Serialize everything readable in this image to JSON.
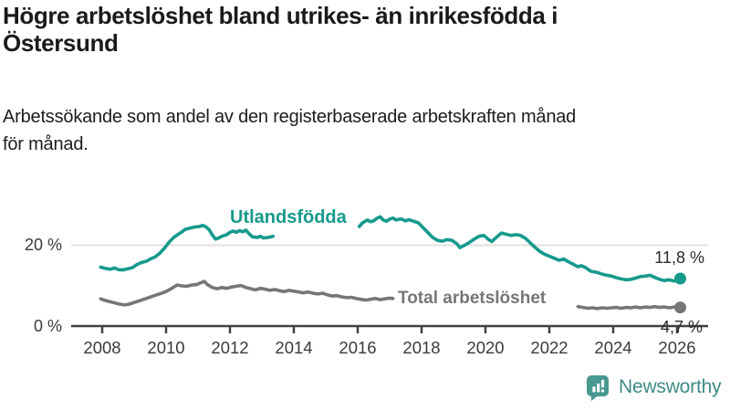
{
  "header": {
    "title": "Högre arbetslöshet bland utrikes- än inrikesfödda i Östersund",
    "title_lines": [
      "Högre arbetslöshet bland utrikes- än inrikesfödda i",
      "Östersund"
    ],
    "subtitle": "Arbetssökande som andel av den registerbaserade arbetskraften månad för månad.",
    "subtitle_lines": [
      "Arbetssökande som andel av den registerbaserade arbetskraften månad",
      "för månad."
    ]
  },
  "chart_data": {
    "type": "line",
    "unit": "%",
    "xlim": [
      2007.9,
      2026.3
    ],
    "ylim": [
      0,
      33
    ],
    "x_ticks": [
      "2008",
      "2010",
      "2012",
      "2014",
      "2016",
      "2018",
      "2020",
      "2022",
      "2024",
      "2026"
    ],
    "y_ticks": [
      {
        "value": 0,
        "label": "0 %"
      },
      {
        "value": 20,
        "label": "20 %"
      }
    ],
    "gridline_at": 20,
    "legend_position": "inline-labels-on-lines",
    "colors": {
      "axis": "#404040",
      "grid": "#e0e0e0"
    },
    "series": [
      {
        "name": "Utlandsfödda",
        "color": "#169a8c",
        "end_label": "11,8 %",
        "end_value": 11.8,
        "segments": [
          [
            [
              2007.95,
              14.6
            ],
            [
              2008.1,
              14.3
            ],
            [
              2008.25,
              14.1
            ],
            [
              2008.4,
              14.4
            ],
            [
              2008.5,
              14.0
            ],
            [
              2008.65,
              13.9
            ],
            [
              2008.8,
              14.2
            ],
            [
              2008.95,
              14.5
            ],
            [
              2009.1,
              15.3
            ],
            [
              2009.25,
              15.8
            ],
            [
              2009.4,
              16.1
            ],
            [
              2009.5,
              16.6
            ],
            [
              2009.65,
              17.1
            ],
            [
              2009.8,
              18.0
            ],
            [
              2009.95,
              19.3
            ],
            [
              2010.1,
              20.8
            ],
            [
              2010.25,
              22.0
            ],
            [
              2010.4,
              22.8
            ],
            [
              2010.5,
              23.3
            ],
            [
              2010.6,
              23.9
            ],
            [
              2010.75,
              24.2
            ],
            [
              2010.9,
              24.5
            ],
            [
              2011.05,
              24.6
            ],
            [
              2011.15,
              24.9
            ],
            [
              2011.25,
              24.5
            ],
            [
              2011.35,
              23.8
            ],
            [
              2011.45,
              22.5
            ],
            [
              2011.55,
              21.5
            ],
            [
              2011.65,
              21.8
            ],
            [
              2011.75,
              22.2
            ],
            [
              2011.9,
              22.6
            ],
            [
              2012.0,
              23.2
            ],
            [
              2012.1,
              23.5
            ],
            [
              2012.2,
              23.2
            ],
            [
              2012.3,
              23.6
            ],
            [
              2012.4,
              23.3
            ],
            [
              2012.5,
              23.7
            ],
            [
              2012.6,
              22.8
            ],
            [
              2012.7,
              22.1
            ],
            [
              2012.85,
              21.9
            ],
            [
              2012.95,
              22.2
            ],
            [
              2013.05,
              21.8
            ],
            [
              2013.2,
              21.9
            ],
            [
              2013.35,
              22.2
            ]
          ],
          [
            [
              2016.05,
              24.6
            ],
            [
              2016.15,
              25.5
            ],
            [
              2016.3,
              26.2
            ],
            [
              2016.4,
              25.8
            ],
            [
              2016.5,
              26.0
            ],
            [
              2016.6,
              26.6
            ],
            [
              2016.7,
              27.0
            ],
            [
              2016.8,
              26.2
            ],
            [
              2016.9,
              25.9
            ],
            [
              2017.0,
              26.4
            ],
            [
              2017.1,
              26.7
            ],
            [
              2017.2,
              26.2
            ],
            [
              2017.35,
              26.5
            ],
            [
              2017.5,
              26.0
            ],
            [
              2017.6,
              26.3
            ],
            [
              2017.75,
              25.9
            ],
            [
              2017.9,
              25.5
            ],
            [
              2018.05,
              24.3
            ],
            [
              2018.2,
              23.1
            ],
            [
              2018.35,
              21.9
            ],
            [
              2018.5,
              21.2
            ],
            [
              2018.65,
              21.0
            ],
            [
              2018.8,
              21.4
            ],
            [
              2018.95,
              21.2
            ],
            [
              2019.1,
              20.4
            ],
            [
              2019.2,
              19.4
            ],
            [
              2019.35,
              20.0
            ],
            [
              2019.5,
              20.7
            ],
            [
              2019.65,
              21.5
            ],
            [
              2019.8,
              22.2
            ],
            [
              2019.95,
              22.4
            ],
            [
              2020.1,
              21.4
            ],
            [
              2020.2,
              20.9
            ],
            [
              2020.35,
              22.0
            ],
            [
              2020.5,
              23.0
            ],
            [
              2020.65,
              22.7
            ],
            [
              2020.8,
              22.4
            ],
            [
              2020.95,
              22.6
            ],
            [
              2021.1,
              22.4
            ],
            [
              2021.25,
              21.7
            ],
            [
              2021.4,
              20.6
            ],
            [
              2021.55,
              19.5
            ],
            [
              2021.7,
              18.5
            ],
            [
              2021.85,
              17.8
            ],
            [
              2022.0,
              17.3
            ],
            [
              2022.15,
              16.8
            ],
            [
              2022.3,
              16.3
            ],
            [
              2022.45,
              16.6
            ],
            [
              2022.6,
              15.9
            ],
            [
              2022.75,
              15.3
            ],
            [
              2022.9,
              14.7
            ],
            [
              2023.0,
              15.0
            ],
            [
              2023.15,
              14.4
            ],
            [
              2023.3,
              13.6
            ],
            [
              2023.5,
              13.3
            ],
            [
              2023.65,
              12.9
            ],
            [
              2023.8,
              12.6
            ],
            [
              2023.95,
              12.4
            ],
            [
              2024.1,
              12.0
            ],
            [
              2024.25,
              11.7
            ],
            [
              2024.4,
              11.5
            ],
            [
              2024.55,
              11.6
            ],
            [
              2024.7,
              11.9
            ],
            [
              2024.85,
              12.3
            ],
            [
              2025.0,
              12.4
            ],
            [
              2025.15,
              12.6
            ],
            [
              2025.3,
              12.1
            ],
            [
              2025.45,
              11.6
            ],
            [
              2025.6,
              11.3
            ],
            [
              2025.75,
              11.5
            ],
            [
              2025.9,
              11.2
            ],
            [
              2026.0,
              11.4
            ],
            [
              2026.1,
              11.8
            ]
          ]
        ]
      },
      {
        "name": "Total arbetslöshet",
        "color": "#767676",
        "end_label": "4,7 %",
        "end_value": 4.7,
        "segments": [
          [
            [
              2007.95,
              6.8
            ],
            [
              2008.1,
              6.4
            ],
            [
              2008.25,
              6.1
            ],
            [
              2008.4,
              5.8
            ],
            [
              2008.55,
              5.5
            ],
            [
              2008.7,
              5.3
            ],
            [
              2008.85,
              5.5
            ],
            [
              2009.0,
              5.9
            ],
            [
              2009.15,
              6.3
            ],
            [
              2009.3,
              6.7
            ],
            [
              2009.45,
              7.1
            ],
            [
              2009.6,
              7.5
            ],
            [
              2009.75,
              7.9
            ],
            [
              2009.9,
              8.3
            ],
            [
              2010.05,
              8.8
            ],
            [
              2010.2,
              9.5
            ],
            [
              2010.35,
              10.2
            ],
            [
              2010.5,
              10.0
            ],
            [
              2010.65,
              9.9
            ],
            [
              2010.8,
              10.2
            ],
            [
              2010.95,
              10.3
            ],
            [
              2011.1,
              10.8
            ],
            [
              2011.2,
              11.1
            ],
            [
              2011.3,
              10.3
            ],
            [
              2011.45,
              9.6
            ],
            [
              2011.6,
              9.3
            ],
            [
              2011.75,
              9.6
            ],
            [
              2011.9,
              9.4
            ],
            [
              2012.05,
              9.7
            ],
            [
              2012.2,
              9.9
            ],
            [
              2012.35,
              10.1
            ],
            [
              2012.5,
              9.6
            ],
            [
              2012.65,
              9.3
            ],
            [
              2012.8,
              9.0
            ],
            [
              2012.95,
              9.4
            ],
            [
              2013.1,
              9.2
            ],
            [
              2013.25,
              8.9
            ],
            [
              2013.4,
              9.1
            ],
            [
              2013.55,
              8.8
            ],
            [
              2013.7,
              8.6
            ],
            [
              2013.85,
              8.9
            ],
            [
              2014.0,
              8.7
            ],
            [
              2014.15,
              8.5
            ],
            [
              2014.3,
              8.3
            ],
            [
              2014.45,
              8.5
            ],
            [
              2014.6,
              8.2
            ],
            [
              2014.75,
              8.0
            ],
            [
              2014.9,
              8.2
            ],
            [
              2015.05,
              7.8
            ],
            [
              2015.2,
              7.5
            ],
            [
              2015.35,
              7.6
            ],
            [
              2015.5,
              7.3
            ],
            [
              2015.65,
              7.1
            ],
            [
              2015.8,
              7.2
            ],
            [
              2015.95,
              6.9
            ],
            [
              2016.1,
              6.7
            ],
            [
              2016.25,
              6.5
            ],
            [
              2016.4,
              6.7
            ],
            [
              2016.55,
              6.9
            ],
            [
              2016.7,
              6.6
            ],
            [
              2016.85,
              6.8
            ],
            [
              2017.0,
              7.0
            ],
            [
              2017.1,
              6.9
            ]
          ],
          [
            [
              2022.9,
              4.9
            ],
            [
              2023.05,
              4.7
            ],
            [
              2023.2,
              4.5
            ],
            [
              2023.35,
              4.6
            ],
            [
              2023.5,
              4.4
            ],
            [
              2023.65,
              4.6
            ],
            [
              2023.8,
              4.5
            ],
            [
              2023.95,
              4.6
            ],
            [
              2024.1,
              4.7
            ],
            [
              2024.25,
              4.5
            ],
            [
              2024.4,
              4.7
            ],
            [
              2024.55,
              4.6
            ],
            [
              2024.7,
              4.8
            ],
            [
              2024.85,
              4.6
            ],
            [
              2025.0,
              4.8
            ],
            [
              2025.15,
              4.7
            ],
            [
              2025.3,
              4.9
            ],
            [
              2025.45,
              4.7
            ],
            [
              2025.6,
              4.8
            ],
            [
              2025.75,
              4.6
            ],
            [
              2025.9,
              4.8
            ],
            [
              2026.1,
              4.7
            ]
          ]
        ]
      }
    ]
  },
  "logo": {
    "text": "Newsworthy",
    "icon": "newsworthy-speech-bubble-bar-chart-icon",
    "icon_color": "#499891",
    "text_color": "#3d8b85"
  }
}
